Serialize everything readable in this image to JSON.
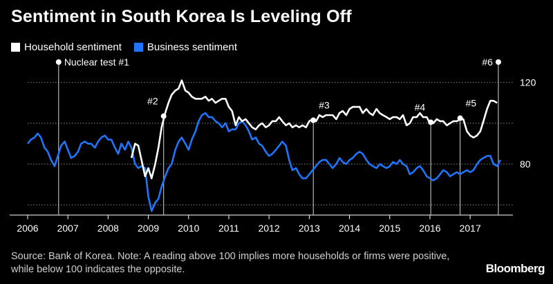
{
  "chart_data": {
    "type": "line",
    "title": "Sentiment in South Korea Is Leveling Off",
    "legend_placement": "top-left",
    "grid": true,
    "xlim": [
      2006.0,
      2017.9
    ],
    "ylim": [
      55,
      130
    ],
    "x_ticks": [
      2006,
      2007,
      2008,
      2009,
      2010,
      2011,
      2012,
      2013,
      2014,
      2015,
      2016,
      2017
    ],
    "x_tick_labels": [
      "2006",
      "2007",
      "2008",
      "2009",
      "2010",
      "2011",
      "2012",
      "2013",
      "2014",
      "2015",
      "2016",
      "2017"
    ],
    "y_ticks": [
      60,
      80,
      100,
      120
    ],
    "y_tick_labels": [
      "",
      "80",
      "",
      "120"
    ],
    "series": [
      {
        "name": "Household sentiment",
        "color": "#ffffff",
        "points": [
          [
            2008.58,
            83
          ],
          [
            2008.67,
            90
          ],
          [
            2008.75,
            89
          ],
          [
            2008.83,
            82
          ],
          [
            2008.92,
            74
          ],
          [
            2009.0,
            78
          ],
          [
            2009.08,
            73
          ],
          [
            2009.17,
            80
          ],
          [
            2009.25,
            88
          ],
          [
            2009.33,
            98
          ],
          [
            2009.42,
            105
          ],
          [
            2009.5,
            110
          ],
          [
            2009.58,
            114
          ],
          [
            2009.67,
            116
          ],
          [
            2009.75,
            117
          ],
          [
            2009.83,
            121
          ],
          [
            2009.92,
            116
          ],
          [
            2010.0,
            115
          ],
          [
            2010.08,
            113
          ],
          [
            2010.17,
            112
          ],
          [
            2010.25,
            112
          ],
          [
            2010.33,
            112
          ],
          [
            2010.42,
            113
          ],
          [
            2010.5,
            111
          ],
          [
            2010.58,
            112
          ],
          [
            2010.67,
            110
          ],
          [
            2010.75,
            111
          ],
          [
            2010.83,
            112
          ],
          [
            2010.92,
            112
          ],
          [
            2011.0,
            108
          ],
          [
            2011.08,
            106
          ],
          [
            2011.17,
            99
          ],
          [
            2011.25,
            103
          ],
          [
            2011.33,
            101
          ],
          [
            2011.42,
            102
          ],
          [
            2011.5,
            100
          ],
          [
            2011.58,
            98
          ],
          [
            2011.67,
            97
          ],
          [
            2011.75,
            99
          ],
          [
            2011.83,
            100
          ],
          [
            2011.92,
            98
          ],
          [
            2012.0,
            99
          ],
          [
            2012.08,
            101
          ],
          [
            2012.17,
            101
          ],
          [
            2012.25,
            103
          ],
          [
            2012.33,
            101
          ],
          [
            2012.42,
            99
          ],
          [
            2012.5,
            100
          ],
          [
            2012.58,
            98
          ],
          [
            2012.67,
            99
          ],
          [
            2012.75,
            98
          ],
          [
            2012.83,
            99
          ],
          [
            2012.92,
            98
          ],
          [
            2013.0,
            101
          ],
          [
            2013.08,
            102
          ],
          [
            2013.17,
            101
          ],
          [
            2013.25,
            104
          ],
          [
            2013.33,
            103
          ],
          [
            2013.42,
            104
          ],
          [
            2013.5,
            104
          ],
          [
            2013.58,
            104
          ],
          [
            2013.67,
            102
          ],
          [
            2013.75,
            105
          ],
          [
            2013.83,
            106
          ],
          [
            2013.92,
            104
          ],
          [
            2014.0,
            107
          ],
          [
            2014.08,
            108
          ],
          [
            2014.17,
            108
          ],
          [
            2014.25,
            108
          ],
          [
            2014.33,
            105
          ],
          [
            2014.42,
            107
          ],
          [
            2014.5,
            105
          ],
          [
            2014.58,
            104
          ],
          [
            2014.67,
            107
          ],
          [
            2014.75,
            105
          ],
          [
            2014.83,
            104
          ],
          [
            2014.92,
            103
          ],
          [
            2015.0,
            102
          ],
          [
            2015.08,
            103
          ],
          [
            2015.17,
            103
          ],
          [
            2015.25,
            102
          ],
          [
            2015.33,
            104
          ],
          [
            2015.42,
            99
          ],
          [
            2015.5,
            100
          ],
          [
            2015.58,
            103
          ],
          [
            2015.67,
            103
          ],
          [
            2015.75,
            105
          ],
          [
            2015.83,
            103
          ],
          [
            2015.92,
            103
          ],
          [
            2016.0,
            100
          ],
          [
            2016.08,
            100
          ],
          [
            2016.17,
            102
          ],
          [
            2016.25,
            101
          ],
          [
            2016.33,
            101
          ],
          [
            2016.42,
            99
          ],
          [
            2016.5,
            100
          ],
          [
            2016.58,
            101
          ],
          [
            2016.67,
            101
          ],
          [
            2016.75,
            102
          ],
          [
            2016.83,
            102
          ],
          [
            2016.92,
            96
          ],
          [
            2017.0,
            94
          ],
          [
            2017.08,
            93
          ],
          [
            2017.17,
            94
          ],
          [
            2017.25,
            96
          ],
          [
            2017.33,
            101
          ],
          [
            2017.42,
            107
          ],
          [
            2017.5,
            111
          ],
          [
            2017.58,
            111
          ],
          [
            2017.67,
            110
          ]
        ]
      },
      {
        "name": "Business sentiment",
        "color": "#1f75fe",
        "points": [
          [
            2006.0,
            90
          ],
          [
            2006.08,
            92
          ],
          [
            2006.17,
            93
          ],
          [
            2006.25,
            95
          ],
          [
            2006.33,
            93
          ],
          [
            2006.42,
            88
          ],
          [
            2006.5,
            86
          ],
          [
            2006.58,
            82
          ],
          [
            2006.67,
            79
          ],
          [
            2006.75,
            84
          ],
          [
            2006.83,
            89
          ],
          [
            2006.92,
            91
          ],
          [
            2007.0,
            87
          ],
          [
            2007.08,
            83
          ],
          [
            2007.17,
            84
          ],
          [
            2007.25,
            86
          ],
          [
            2007.33,
            90
          ],
          [
            2007.42,
            91
          ],
          [
            2007.5,
            90
          ],
          [
            2007.58,
            90
          ],
          [
            2007.67,
            88
          ],
          [
            2007.75,
            91
          ],
          [
            2007.83,
            93
          ],
          [
            2007.92,
            94
          ],
          [
            2008.0,
            92
          ],
          [
            2008.08,
            92
          ],
          [
            2008.17,
            88
          ],
          [
            2008.25,
            85
          ],
          [
            2008.33,
            90
          ],
          [
            2008.42,
            87
          ],
          [
            2008.5,
            91
          ],
          [
            2008.58,
            88
          ],
          [
            2008.67,
            80
          ],
          [
            2008.75,
            78
          ],
          [
            2008.83,
            79
          ],
          [
            2008.92,
            78
          ],
          [
            2009.0,
            64
          ],
          [
            2009.08,
            57
          ],
          [
            2009.17,
            61
          ],
          [
            2009.25,
            63
          ],
          [
            2009.33,
            69
          ],
          [
            2009.42,
            74
          ],
          [
            2009.5,
            78
          ],
          [
            2009.58,
            80
          ],
          [
            2009.67,
            87
          ],
          [
            2009.75,
            91
          ],
          [
            2009.83,
            93
          ],
          [
            2009.92,
            90
          ],
          [
            2010.0,
            87
          ],
          [
            2010.08,
            92
          ],
          [
            2010.17,
            96
          ],
          [
            2010.25,
            101
          ],
          [
            2010.33,
            104
          ],
          [
            2010.42,
            105
          ],
          [
            2010.5,
            103
          ],
          [
            2010.58,
            103
          ],
          [
            2010.67,
            101
          ],
          [
            2010.75,
            100
          ],
          [
            2010.83,
            98
          ],
          [
            2010.92,
            100
          ],
          [
            2011.0,
            96
          ],
          [
            2011.08,
            97
          ],
          [
            2011.17,
            97
          ],
          [
            2011.25,
            100
          ],
          [
            2011.33,
            101
          ],
          [
            2011.42,
            99
          ],
          [
            2011.5,
            96
          ],
          [
            2011.58,
            92
          ],
          [
            2011.67,
            93
          ],
          [
            2011.75,
            90
          ],
          [
            2011.83,
            89
          ],
          [
            2011.92,
            86
          ],
          [
            2012.0,
            84
          ],
          [
            2012.08,
            85
          ],
          [
            2012.17,
            87
          ],
          [
            2012.25,
            89
          ],
          [
            2012.33,
            91
          ],
          [
            2012.42,
            89
          ],
          [
            2012.5,
            82
          ],
          [
            2012.58,
            77
          ],
          [
            2012.67,
            78
          ],
          [
            2012.75,
            75
          ],
          [
            2012.83,
            73
          ],
          [
            2012.92,
            73
          ],
          [
            2013.0,
            75
          ],
          [
            2013.08,
            77
          ],
          [
            2013.17,
            79
          ],
          [
            2013.25,
            81
          ],
          [
            2013.33,
            82
          ],
          [
            2013.42,
            82
          ],
          [
            2013.5,
            80
          ],
          [
            2013.58,
            78
          ],
          [
            2013.67,
            80
          ],
          [
            2013.75,
            83
          ],
          [
            2013.83,
            81
          ],
          [
            2013.92,
            80
          ],
          [
            2014.0,
            82
          ],
          [
            2014.08,
            83
          ],
          [
            2014.17,
            85
          ],
          [
            2014.25,
            86
          ],
          [
            2014.33,
            85
          ],
          [
            2014.42,
            82
          ],
          [
            2014.5,
            80
          ],
          [
            2014.58,
            79
          ],
          [
            2014.67,
            78
          ],
          [
            2014.75,
            80
          ],
          [
            2014.83,
            79
          ],
          [
            2014.92,
            78
          ],
          [
            2015.0,
            79
          ],
          [
            2015.08,
            81
          ],
          [
            2015.17,
            80
          ],
          [
            2015.25,
            82
          ],
          [
            2015.33,
            80
          ],
          [
            2015.42,
            79
          ],
          [
            2015.5,
            75
          ],
          [
            2015.58,
            76
          ],
          [
            2015.67,
            78
          ],
          [
            2015.75,
            79
          ],
          [
            2015.83,
            77
          ],
          [
            2015.92,
            74
          ],
          [
            2016.0,
            73
          ],
          [
            2016.08,
            72
          ],
          [
            2016.17,
            73
          ],
          [
            2016.25,
            75
          ],
          [
            2016.33,
            77
          ],
          [
            2016.42,
            76
          ],
          [
            2016.5,
            74
          ],
          [
            2016.58,
            75
          ],
          [
            2016.67,
            76
          ],
          [
            2016.75,
            75
          ],
          [
            2016.83,
            76
          ],
          [
            2016.92,
            77
          ],
          [
            2017.0,
            76
          ],
          [
            2017.08,
            77
          ],
          [
            2017.17,
            80
          ],
          [
            2017.25,
            82
          ],
          [
            2017.33,
            83
          ],
          [
            2017.42,
            84
          ],
          [
            2017.5,
            84
          ],
          [
            2017.58,
            80
          ],
          [
            2017.67,
            79
          ],
          [
            2017.75,
            82
          ]
        ]
      }
    ],
    "annotations": [
      {
        "label": "Nuclear test #1",
        "x": 2006.77,
        "y": 130,
        "label_side": "right"
      },
      {
        "label": "#2",
        "x": 2009.38,
        "y": 103.5,
        "label_side": "left"
      },
      {
        "label": "#3",
        "x": 2013.1,
        "y": 101.5,
        "label_side": "right"
      },
      {
        "label": "#4",
        "x": 2016.02,
        "y": 100.5,
        "label_side": "left"
      },
      {
        "label": "#5",
        "x": 2016.75,
        "y": 102.5,
        "label_side": "right"
      },
      {
        "label": "#6",
        "x": 2017.7,
        "y": 130,
        "label_side": "left"
      }
    ]
  },
  "footer": {
    "source": "Source: Bank of Korea. Note: A reading above 100 implies more households or firms were positive, while below 100 indicates the opposite.",
    "brand": "Bloomberg"
  }
}
